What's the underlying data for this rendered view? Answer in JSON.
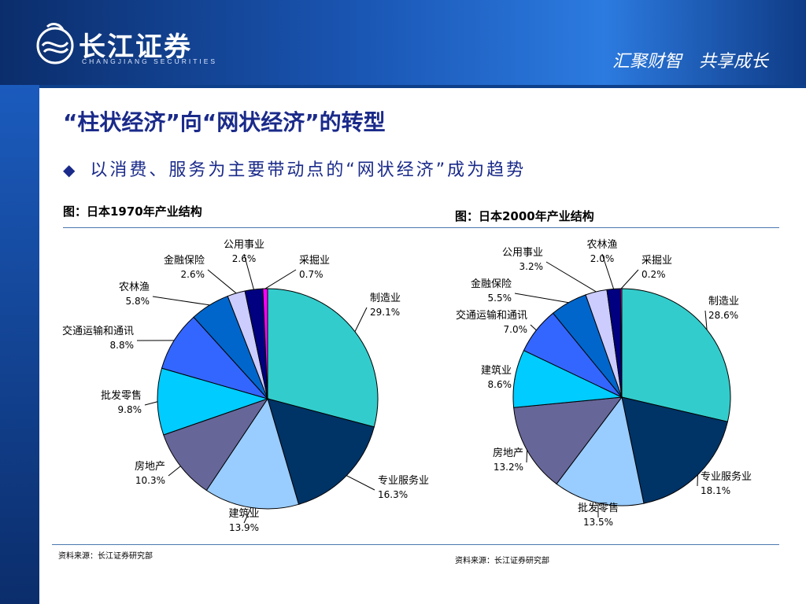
{
  "header": {
    "logo_cn": "长江证券",
    "logo_en": "CHANGJIANG SECURITIES",
    "slogan": "汇聚财智　共享成长"
  },
  "slide": {
    "title": "“柱状经济”向“网状经济”的转型",
    "bullet_icon": "diamond-bullet-icon",
    "bullet_text": "以消费、服务为主要带动点的“网状经济”成为趋势"
  },
  "colors": {
    "header_dark": "#0b2d6b",
    "header_light": "#2c7be0",
    "title_text": "#1a2a8a"
  },
  "chart_data": [
    {
      "type": "pie",
      "title": "图：日本1970年产业结构",
      "source": "资料来源：长江证券研究部",
      "slices": [
        {
          "label": "制造业",
          "value_label": "29.1%",
          "value": 29.1,
          "color": "#33cccc"
        },
        {
          "label": "专业服务业",
          "value_label": "16.3%",
          "value": 16.3,
          "color": "#003366"
        },
        {
          "label": "建筑业",
          "value_label": "13.9%",
          "value": 13.9,
          "color": "#99ccff"
        },
        {
          "label": "房地产",
          "value_label": "10.3%",
          "value": 10.3,
          "color": "#666699"
        },
        {
          "label": "批发零售",
          "value_label": "9.8%",
          "value": 9.8,
          "color": "#00ccff"
        },
        {
          "label": "交通运输和通讯",
          "value_label": "8.8%",
          "value": 8.8,
          "color": "#3366ff"
        },
        {
          "label": "农林渔",
          "value_label": "5.8%",
          "value": 5.8,
          "color": "#0066cc"
        },
        {
          "label": "金融保险",
          "value_label": "2.6%",
          "value": 2.6,
          "color": "#ccccff"
        },
        {
          "label": "公用事业",
          "value_label": "2.6%",
          "value": 2.6,
          "color": "#000080"
        },
        {
          "label": "采掘业",
          "value_label": "0.7%",
          "value": 0.7,
          "color": "#ff00ff"
        }
      ]
    },
    {
      "type": "pie",
      "title": "图：日本2000年产业结构",
      "source": "资料来源：长江证券研究部",
      "slices": [
        {
          "label": "制造业",
          "value_label": "28.6%",
          "value": 28.6,
          "color": "#33cccc"
        },
        {
          "label": "专业服务业",
          "value_label": "18.1%",
          "value": 18.1,
          "color": "#003366"
        },
        {
          "label": "批发零售",
          "value_label": "13.5%",
          "value": 13.5,
          "color": "#99ccff"
        },
        {
          "label": "房地产",
          "value_label": "13.2%",
          "value": 13.2,
          "color": "#666699"
        },
        {
          "label": "建筑业",
          "value_label": "8.6%",
          "value": 8.6,
          "color": "#00ccff"
        },
        {
          "label": "交通运输和通讯",
          "value_label": "7.0%",
          "value": 7.0,
          "color": "#3366ff"
        },
        {
          "label": "金融保险",
          "value_label": "5.5%",
          "value": 5.5,
          "color": "#0066cc"
        },
        {
          "label": "公用事业",
          "value_label": "3.2%",
          "value": 3.2,
          "color": "#ccccff"
        },
        {
          "label": "农林渔",
          "value_label": "2.0%",
          "value": 2.0,
          "color": "#000080"
        },
        {
          "label": "采掘业",
          "value_label": "0.2%",
          "value": 0.2,
          "color": "#ff00ff"
        }
      ]
    }
  ]
}
